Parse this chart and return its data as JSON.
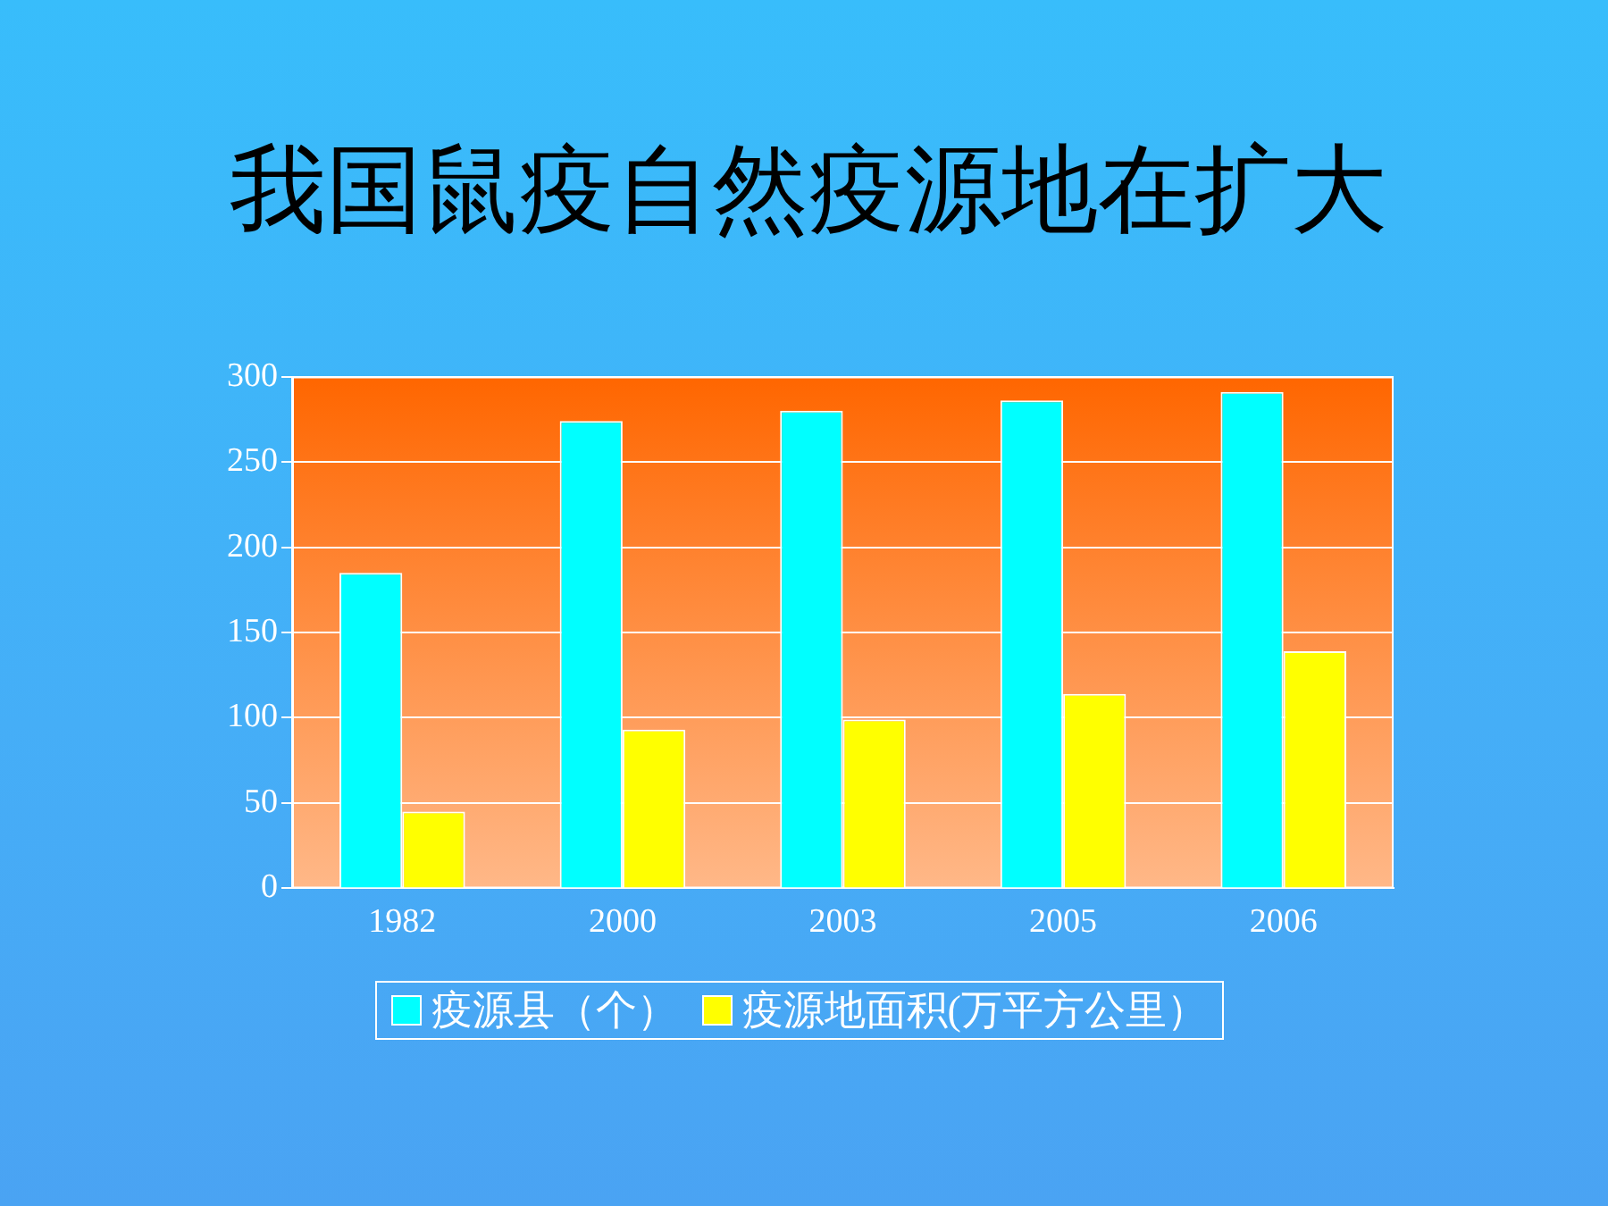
{
  "chart_data": {
    "type": "bar",
    "title": "我国鼠疫自然疫源地在扩大",
    "categories": [
      "1982",
      "2000",
      "2003",
      "2005",
      "2006"
    ],
    "series": [
      {
        "name": "疫源县（个）",
        "color": "#00ffff",
        "values": [
          185,
          274,
          280,
          286,
          291
        ]
      },
      {
        "name": "疫源地面积(万平方公里）",
        "color": "#ffff00",
        "values": [
          45,
          93,
          99,
          114,
          139
        ]
      }
    ],
    "ylim": [
      0,
      300
    ],
    "yticks": [
      0,
      50,
      100,
      150,
      200,
      250,
      300
    ],
    "grid": "y",
    "legend": "bottom"
  }
}
